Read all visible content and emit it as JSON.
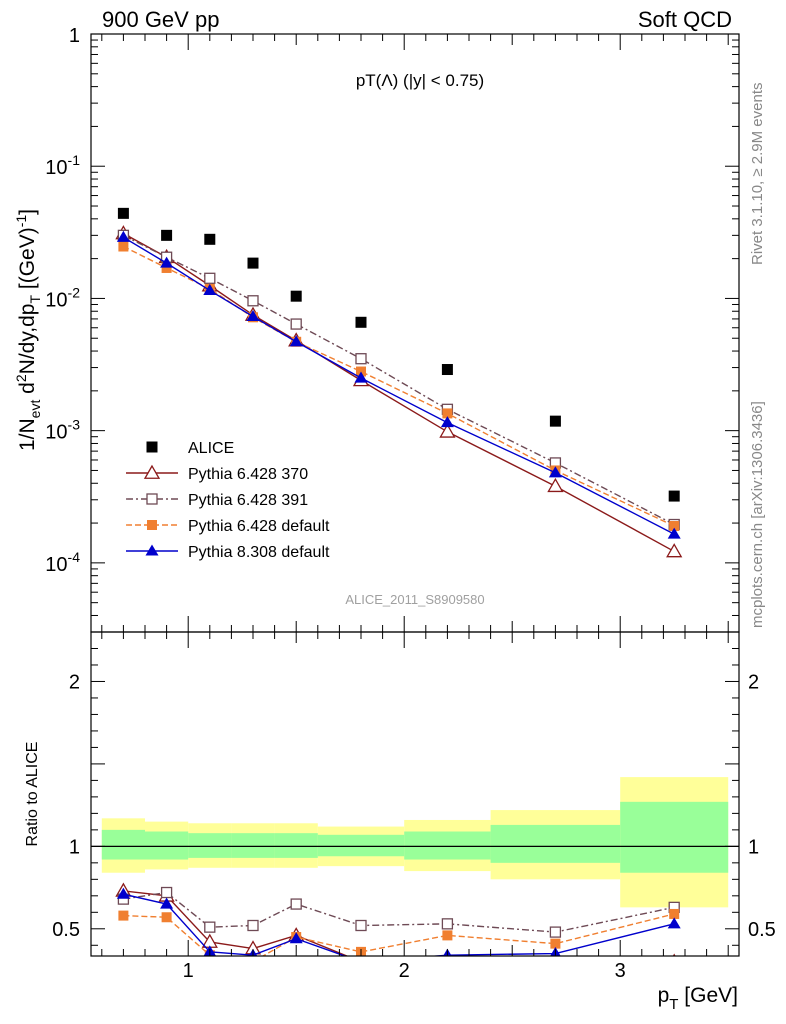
{
  "header": {
    "left": "900 GeV pp",
    "right": "Soft QCD"
  },
  "side": {
    "rivet": "Rivet 3.1.10, ≥ 2.9M events",
    "mcplots": "mcplots.cern.ch [arXiv:1306.3436]"
  },
  "chart_data": [
    {
      "type": "scatter",
      "title": "pT(Λ) (|y| < 0.75)",
      "xlabel": "p_T [GeV]",
      "ylabel": "1/N_evt d²N/dy,dp_T [(GeV)⁻¹]",
      "yscale": "log",
      "ylim": [
        3e-05,
        1
      ],
      "xlim": [
        0.55,
        3.55
      ],
      "yticks": [
        "10^-4",
        "10^-3",
        "10^-2",
        "10^-1",
        "1"
      ],
      "watermark": "ALICE_2011_S8909580",
      "legend_position": "lower-left",
      "x": [
        0.7,
        0.9,
        1.1,
        1.3,
        1.5,
        1.8,
        2.2,
        2.7,
        3.25
      ],
      "series": [
        {
          "name": "ALICE",
          "color": "#000000",
          "marker": "square-filled",
          "values": [
            0.044,
            0.03,
            0.028,
            0.0185,
            0.0104,
            0.0066,
            0.0029,
            0.00118,
            0.00032
          ]
        },
        {
          "name": "Pythia 6.428 370",
          "color": "#8b1a1a",
          "marker": "triangle-open",
          "line": "solid",
          "values": [
            0.031,
            0.0205,
            0.0125,
            0.0075,
            0.0048,
            0.0024,
            0.00098,
            0.00038,
            0.000122
          ]
        },
        {
          "name": "Pythia 6.428 391",
          "color": "#6e4a55",
          "marker": "square-open",
          "line": "dashdot",
          "values": [
            0.03,
            0.0205,
            0.0142,
            0.0096,
            0.0064,
            0.0035,
            0.00145,
            0.00057,
            0.000195
          ]
        },
        {
          "name": "Pythia 6.428 default",
          "color": "#f07f30",
          "marker": "square-filled",
          "line": "dashed",
          "values": [
            0.0247,
            0.017,
            0.0118,
            0.0072,
            0.0047,
            0.0028,
            0.00135,
            0.0005,
            0.00019
          ]
        },
        {
          "name": "Pythia 8.308 default",
          "color": "#0000cc",
          "marker": "triangle-filled",
          "line": "solid",
          "values": [
            0.029,
            0.0185,
            0.0115,
            0.0073,
            0.0047,
            0.0025,
            0.00115,
            0.00048,
            0.000165
          ]
        }
      ]
    },
    {
      "type": "scatter",
      "xlabel": "p_T [GeV]",
      "ylabel": "Ratio to ALICE",
      "ylim": [
        0.335,
        2.3
      ],
      "xlim": [
        0.55,
        3.55
      ],
      "xticks": [
        "1",
        "2",
        "3"
      ],
      "yticks": [
        "0.5",
        "1",
        "2"
      ],
      "bins": [
        [
          0.6,
          0.8
        ],
        [
          0.8,
          1.0
        ],
        [
          1.0,
          1.2
        ],
        [
          1.2,
          1.4
        ],
        [
          1.4,
          1.6
        ],
        [
          1.6,
          2.0
        ],
        [
          2.0,
          2.4
        ],
        [
          2.4,
          3.0
        ],
        [
          3.0,
          3.5
        ]
      ],
      "band_yellow": [
        [
          0.84,
          1.17
        ],
        [
          0.86,
          1.15
        ],
        [
          0.87,
          1.14
        ],
        [
          0.87,
          1.14
        ],
        [
          0.87,
          1.14
        ],
        [
          0.88,
          1.12
        ],
        [
          0.85,
          1.16
        ],
        [
          0.8,
          1.22
        ],
        [
          0.63,
          1.42
        ]
      ],
      "band_green": [
        [
          0.92,
          1.1
        ],
        [
          0.92,
          1.09
        ],
        [
          0.93,
          1.08
        ],
        [
          0.93,
          1.08
        ],
        [
          0.93,
          1.08
        ],
        [
          0.94,
          1.07
        ],
        [
          0.92,
          1.09
        ],
        [
          0.9,
          1.13
        ],
        [
          0.84,
          1.27
        ]
      ],
      "x": [
        0.7,
        0.9,
        1.1,
        1.3,
        1.5,
        1.8,
        2.2,
        2.7,
        3.25
      ],
      "series": [
        {
          "name": "Pythia 6.428 370",
          "color": "#8b1a1a",
          "marker": "triangle-open",
          "line": "solid",
          "values": [
            0.73,
            0.7,
            0.42,
            0.38,
            0.46,
            0.3,
            0.3,
            0.3,
            0.3
          ]
        },
        {
          "name": "Pythia 6.428 391",
          "color": "#6e4a55",
          "marker": "square-open",
          "line": "dashdot",
          "values": [
            0.68,
            0.72,
            0.51,
            0.52,
            0.65,
            0.52,
            0.53,
            0.48,
            0.63
          ]
        },
        {
          "name": "Pythia 6.428 default",
          "color": "#f07f30",
          "marker": "square-filled",
          "line": "dashed",
          "values": [
            0.58,
            0.57,
            0.34,
            0.3,
            0.45,
            0.36,
            0.46,
            0.41,
            0.59
          ]
        },
        {
          "name": "Pythia 8.308 default",
          "color": "#0000cc",
          "marker": "triangle-filled",
          "line": "solid",
          "values": [
            0.71,
            0.65,
            0.36,
            0.34,
            0.44,
            0.3,
            0.34,
            0.35,
            0.53
          ]
        }
      ]
    }
  ]
}
